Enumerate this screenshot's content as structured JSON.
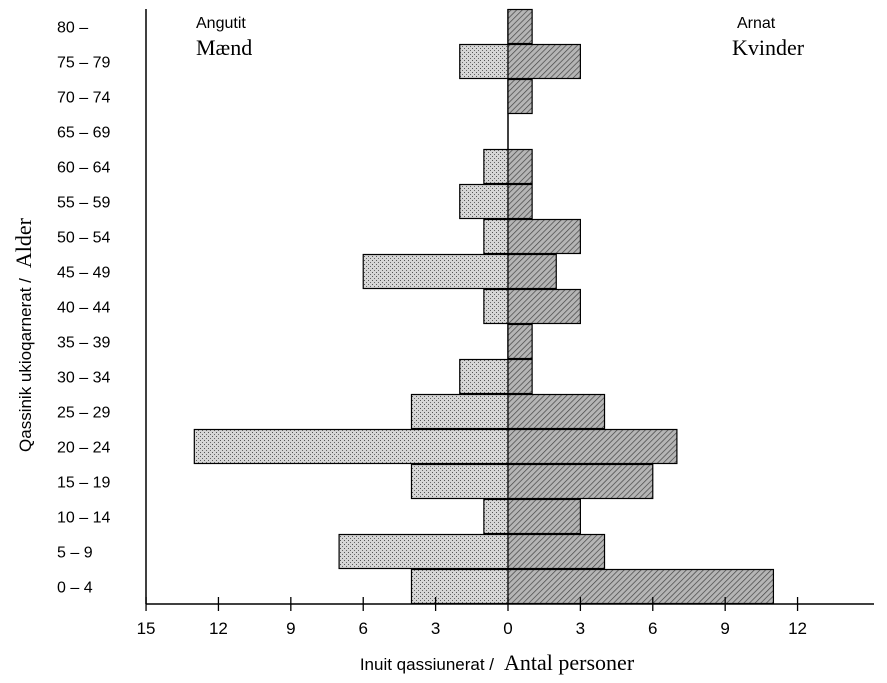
{
  "chart_data": {
    "type": "bar",
    "orientation": "horizontal-population-pyramid",
    "categories": [
      "0 – 4",
      "5 – 9",
      "10 – 14",
      "15 – 19",
      "20 – 24",
      "25 – 29",
      "30 – 34",
      "35 – 39",
      "40 – 44",
      "45 – 49",
      "50 – 54",
      "55 – 59",
      "60 – 64",
      "65 – 69",
      "70 – 74",
      "75 – 79",
      "80 –"
    ],
    "series": [
      {
        "name_primary": "Angutit",
        "name_secondary": "Mænd",
        "side": "left",
        "values": [
          4,
          7,
          1,
          4,
          13,
          4,
          2,
          0,
          1,
          6,
          1,
          2,
          1,
          0,
          0,
          2,
          0
        ],
        "fill": "#c8c8c8"
      },
      {
        "name_primary": "Arnat",
        "name_secondary": "Kvinder",
        "side": "right",
        "values": [
          11,
          4,
          3,
          6,
          7,
          4,
          1,
          1,
          3,
          2,
          3,
          1,
          1,
          0,
          1,
          3,
          1
        ],
        "fill": "#9a9a9a"
      }
    ],
    "x_ticks_left": [
      "15",
      "12",
      "9",
      "6",
      "3",
      "0"
    ],
    "x_ticks_right": [
      "3",
      "6",
      "9",
      "12"
    ],
    "xlabel_primary": "Inuit qassiunerat /",
    "xlabel_secondary": "Antal personer",
    "ylabel_primary": "Qassinik ukioqarnerat /",
    "ylabel_secondary": "Alder",
    "xlim_left": [
      0,
      15
    ],
    "xlim_right": [
      0,
      12
    ],
    "grid": false
  }
}
